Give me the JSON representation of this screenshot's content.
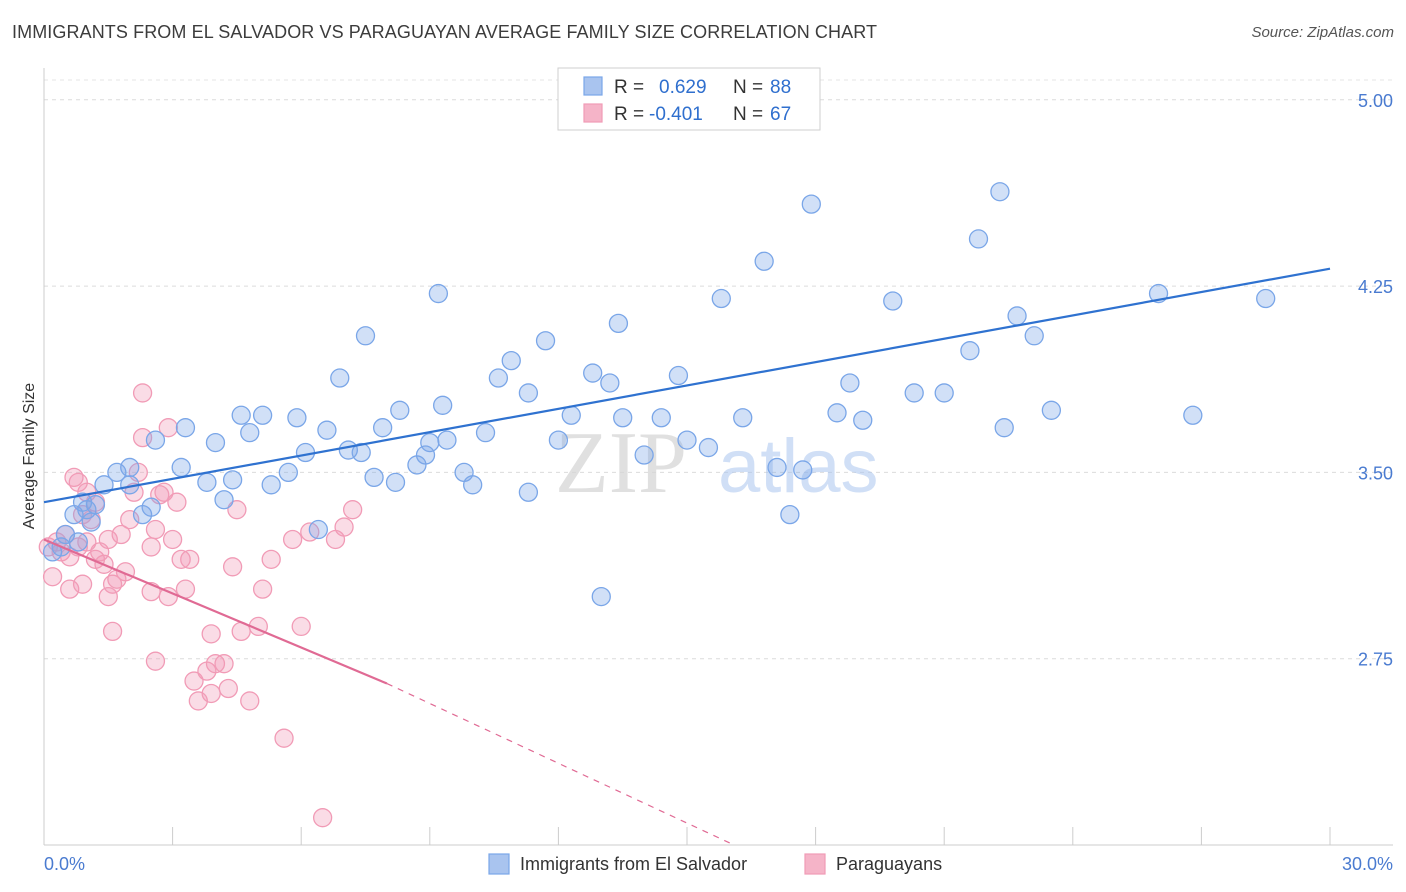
{
  "header": {
    "title": "IMMIGRANTS FROM EL SALVADOR VS PARAGUAYAN AVERAGE FAMILY SIZE CORRELATION CHART",
    "source": "Source: ZipAtlas.com"
  },
  "watermark": {
    "zip": "ZIP",
    "atlas": "atlas"
  },
  "legend": {
    "r_label": "R =",
    "n_label": "N =",
    "rows": [
      {
        "series": "Immigrants from El Salvador",
        "r": "0.629",
        "n": "88",
        "color": "#a9c4ef"
      },
      {
        "series": "Paraguayans",
        "r": "-0.401",
        "n": "67",
        "color": "#f5b4c8"
      }
    ]
  },
  "chart_data": {
    "type": "scatter",
    "ylabel": "Average Family Size",
    "xlim": [
      0,
      30
    ],
    "ylim": [
      2.0,
      5.12
    ],
    "x_tick_labels": [
      "0.0%",
      "30.0%"
    ],
    "y_ticks": [
      2.75,
      3.5,
      4.25,
      5.0
    ],
    "y_tick_labels": [
      "2.75",
      "3.50",
      "4.25",
      "5.00"
    ],
    "grid": true,
    "legend_position": "top-center",
    "series": [
      {
        "name": "Immigrants from El Salvador",
        "color": "#7aa6e8",
        "line_color": "#2f72d0",
        "trend": {
          "x0": 0.0,
          "y0": 3.38,
          "x1": 30.0,
          "y1": 4.32
        },
        "points": [
          [
            0.2,
            3.18
          ],
          [
            0.5,
            3.25
          ],
          [
            0.7,
            3.33
          ],
          [
            0.9,
            3.38
          ],
          [
            1.0,
            3.35
          ],
          [
            1.2,
            3.37
          ],
          [
            1.4,
            3.45
          ],
          [
            1.7,
            3.5
          ],
          [
            2.0,
            3.52
          ],
          [
            2.0,
            3.45
          ],
          [
            2.3,
            3.33
          ],
          [
            2.5,
            3.36
          ],
          [
            2.6,
            3.63
          ],
          [
            3.2,
            3.52
          ],
          [
            3.3,
            3.68
          ],
          [
            3.8,
            3.46
          ],
          [
            4.0,
            3.62
          ],
          [
            4.2,
            3.39
          ],
          [
            4.4,
            3.47
          ],
          [
            4.6,
            3.73
          ],
          [
            4.8,
            3.66
          ],
          [
            5.1,
            3.73
          ],
          [
            5.3,
            3.45
          ],
          [
            5.7,
            3.5
          ],
          [
            5.9,
            3.72
          ],
          [
            6.1,
            3.58
          ],
          [
            6.4,
            3.27
          ],
          [
            6.6,
            3.67
          ],
          [
            6.9,
            3.88
          ],
          [
            7.1,
            3.59
          ],
          [
            7.4,
            3.58
          ],
          [
            7.5,
            4.05
          ],
          [
            7.7,
            3.48
          ],
          [
            7.9,
            3.68
          ],
          [
            8.2,
            3.46
          ],
          [
            8.3,
            3.75
          ],
          [
            8.7,
            3.53
          ],
          [
            8.9,
            3.57
          ],
          [
            9.0,
            3.62
          ],
          [
            9.2,
            4.22
          ],
          [
            9.3,
            3.77
          ],
          [
            9.4,
            3.63
          ],
          [
            9.8,
            3.5
          ],
          [
            10.0,
            3.45
          ],
          [
            10.3,
            3.66
          ],
          [
            10.6,
            3.88
          ],
          [
            10.9,
            3.95
          ],
          [
            11.3,
            3.42
          ],
          [
            11.3,
            3.82
          ],
          [
            11.7,
            4.03
          ],
          [
            12.0,
            3.63
          ],
          [
            12.3,
            3.73
          ],
          [
            12.8,
            3.9
          ],
          [
            13.0,
            3.0
          ],
          [
            13.2,
            3.86
          ],
          [
            13.4,
            4.1
          ],
          [
            13.5,
            3.72
          ],
          [
            14.0,
            3.57
          ],
          [
            14.4,
            3.72
          ],
          [
            14.8,
            3.89
          ],
          [
            15.0,
            3.63
          ],
          [
            15.5,
            3.6
          ],
          [
            15.8,
            4.2
          ],
          [
            16.3,
            3.72
          ],
          [
            16.8,
            4.35
          ],
          [
            17.1,
            3.52
          ],
          [
            17.4,
            3.33
          ],
          [
            17.7,
            3.51
          ],
          [
            17.9,
            4.58
          ],
          [
            18.5,
            3.74
          ],
          [
            18.8,
            3.86
          ],
          [
            19.1,
            3.71
          ],
          [
            19.8,
            4.19
          ],
          [
            20.3,
            3.82
          ],
          [
            21.0,
            3.82
          ],
          [
            21.6,
            3.99
          ],
          [
            21.8,
            4.44
          ],
          [
            22.3,
            4.63
          ],
          [
            22.4,
            3.68
          ],
          [
            22.7,
            4.13
          ],
          [
            23.1,
            4.05
          ],
          [
            23.5,
            3.75
          ],
          [
            26.0,
            4.22
          ],
          [
            26.8,
            3.73
          ],
          [
            28.5,
            4.2
          ],
          [
            0.4,
            3.2
          ],
          [
            1.1,
            3.3
          ],
          [
            0.8,
            3.22
          ]
        ]
      },
      {
        "name": "Paraguayans",
        "color": "#f19bb6",
        "line_color": "#e06a94",
        "trend": {
          "x0": 0.0,
          "y0": 3.23,
          "x1": 8.0,
          "y1": 2.65
        },
        "trend_dashed": {
          "x0": 8.0,
          "y0": 2.65,
          "x1": 16.1,
          "y1": 2.0
        },
        "points": [
          [
            0.1,
            3.2
          ],
          [
            0.2,
            3.08
          ],
          [
            0.3,
            3.22
          ],
          [
            0.4,
            3.18
          ],
          [
            0.5,
            3.25
          ],
          [
            0.6,
            3.03
          ],
          [
            0.6,
            3.16
          ],
          [
            0.7,
            3.48
          ],
          [
            0.8,
            3.2
          ],
          [
            0.8,
            3.46
          ],
          [
            0.9,
            3.05
          ],
          [
            1.0,
            3.22
          ],
          [
            1.0,
            3.42
          ],
          [
            1.1,
            3.31
          ],
          [
            1.2,
            3.38
          ],
          [
            1.3,
            3.18
          ],
          [
            1.4,
            3.13
          ],
          [
            1.5,
            3.23
          ],
          [
            1.6,
            3.05
          ],
          [
            1.7,
            3.07
          ],
          [
            1.8,
            3.25
          ],
          [
            1.9,
            3.1
          ],
          [
            2.0,
            3.31
          ],
          [
            2.1,
            3.42
          ],
          [
            2.2,
            3.5
          ],
          [
            2.3,
            3.82
          ],
          [
            2.3,
            3.64
          ],
          [
            2.5,
            3.02
          ],
          [
            2.5,
            3.2
          ],
          [
            2.6,
            3.27
          ],
          [
            2.7,
            3.41
          ],
          [
            2.8,
            3.42
          ],
          [
            2.9,
            3.68
          ],
          [
            3.0,
            3.23
          ],
          [
            3.1,
            3.38
          ],
          [
            3.2,
            3.15
          ],
          [
            3.3,
            3.03
          ],
          [
            3.4,
            3.15
          ],
          [
            3.5,
            2.66
          ],
          [
            3.6,
            2.58
          ],
          [
            3.8,
            2.7
          ],
          [
            3.9,
            2.85
          ],
          [
            4.0,
            2.73
          ],
          [
            4.2,
            2.73
          ],
          [
            4.3,
            2.63
          ],
          [
            4.4,
            3.12
          ],
          [
            4.5,
            3.35
          ],
          [
            4.6,
            2.86
          ],
          [
            4.8,
            2.58
          ],
          [
            5.0,
            2.88
          ],
          [
            5.1,
            3.03
          ],
          [
            5.3,
            3.15
          ],
          [
            5.6,
            2.43
          ],
          [
            5.8,
            3.23
          ],
          [
            6.0,
            2.88
          ],
          [
            6.2,
            3.26
          ],
          [
            6.5,
            2.11
          ],
          [
            6.8,
            3.23
          ],
          [
            7.0,
            3.28
          ],
          [
            7.2,
            3.35
          ],
          [
            1.6,
            2.86
          ],
          [
            2.6,
            2.74
          ],
          [
            3.9,
            2.61
          ],
          [
            1.2,
            3.15
          ],
          [
            0.9,
            3.33
          ],
          [
            1.5,
            3.0
          ],
          [
            2.9,
            3.0
          ]
        ]
      }
    ]
  },
  "bottom_legend": {
    "items": [
      "Immigrants from El Salvador",
      "Paraguayans"
    ]
  }
}
